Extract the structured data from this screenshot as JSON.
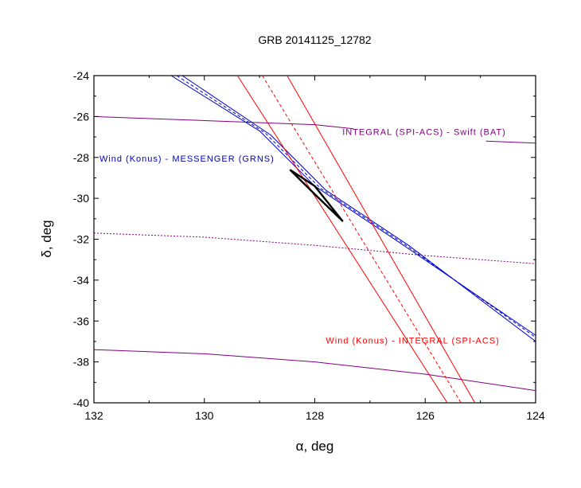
{
  "chart_data": {
    "type": "line",
    "title": "GRB 20141125_12782",
    "xlabel": "α, deg",
    "ylabel": "δ, deg",
    "xlim": [
      132,
      124
    ],
    "ylim": [
      -40,
      -24
    ],
    "x_ticks": [
      132,
      130,
      128,
      126,
      124
    ],
    "y_ticks": [
      -24,
      -26,
      -28,
      -30,
      -32,
      -34,
      -36,
      -38,
      -40
    ],
    "x_tick_labels": [
      "132",
      "130",
      "128",
      "126",
      "124"
    ],
    "y_tick_labels": [
      "-24",
      "-26",
      "-28",
      "-30",
      "-32",
      "-34",
      "-36",
      "-38",
      "-40"
    ],
    "grid": false,
    "colors": {
      "purple": "#800080",
      "blue": "#0000cc",
      "red": "#ff0000",
      "black": "#000000"
    },
    "annotations": [
      {
        "text": "INTEGRAL (SPI-ACS) - Swift (BAT)",
        "x": 127.5,
        "y": -26.9,
        "color": "#800080"
      },
      {
        "text": "Wind (Konus) - MESSENGER (GRNS)",
        "x": 131.9,
        "y": -28.2,
        "color": "#0000cc"
      },
      {
        "text": "Wind (Konus) - INTEGRAL (SPI-ACS)",
        "x": 127.8,
        "y": -37.1,
        "color": "#ff0000"
      }
    ],
    "series": [
      {
        "group": "integral-swift",
        "style": "solid",
        "color": "#800080",
        "points": [
          [
            132,
            -26.0
          ],
          [
            130,
            -26.2
          ],
          [
            128,
            -26.4
          ],
          [
            127.3,
            -26.6
          ]
        ]
      },
      {
        "group": "integral-swift",
        "style": "solid",
        "color": "#800080",
        "points": [
          [
            124.9,
            -27.2
          ],
          [
            124,
            -27.3
          ]
        ]
      },
      {
        "group": "integral-swift",
        "style": "dotted",
        "color": "#800080",
        "points": [
          [
            132,
            -31.7
          ],
          [
            130,
            -31.9
          ],
          [
            128,
            -32.3
          ],
          [
            126,
            -32.8
          ],
          [
            124,
            -33.2
          ]
        ]
      },
      {
        "group": "integral-swift",
        "style": "solid",
        "color": "#800080",
        "points": [
          [
            132,
            -37.4
          ],
          [
            130,
            -37.6
          ],
          [
            128,
            -38.0
          ],
          [
            126,
            -38.6
          ],
          [
            124,
            -39.4
          ]
        ]
      },
      {
        "group": "konus-messenger",
        "style": "solid",
        "color": "#0000cc",
        "points": [
          [
            130.6,
            -24.0
          ],
          [
            129.0,
            -26.7
          ],
          [
            128.0,
            -29.4
          ],
          [
            126.5,
            -32.1
          ],
          [
            124.0,
            -36.7
          ]
        ]
      },
      {
        "group": "konus-messenger",
        "style": "dashed",
        "color": "#0000cc",
        "points": [
          [
            130.5,
            -24.0
          ],
          [
            128.9,
            -26.8
          ],
          [
            127.9,
            -29.5
          ],
          [
            126.4,
            -32.2
          ],
          [
            124.0,
            -36.8
          ]
        ]
      },
      {
        "group": "konus-messenger",
        "style": "solid",
        "color": "#0000cc",
        "points": [
          [
            130.4,
            -24.0
          ],
          [
            128.8,
            -26.9
          ],
          [
            127.8,
            -29.6
          ],
          [
            126.3,
            -32.3
          ],
          [
            124.0,
            -37.0
          ]
        ]
      },
      {
        "group": "konus-integral",
        "style": "solid",
        "color": "#ff0000",
        "points": [
          [
            129.4,
            -24.0
          ],
          [
            125.6,
            -40.0
          ]
        ]
      },
      {
        "group": "konus-integral",
        "style": "dashed",
        "color": "#ff0000",
        "points": [
          [
            128.95,
            -24.0
          ],
          [
            125.35,
            -40.0
          ]
        ]
      },
      {
        "group": "konus-integral",
        "style": "solid",
        "color": "#ff0000",
        "points": [
          [
            128.5,
            -24.0
          ],
          [
            125.1,
            -40.0
          ]
        ]
      },
      {
        "group": "localization",
        "style": "solid-thick",
        "color": "#000000",
        "points": [
          [
            128.45,
            -28.6
          ],
          [
            128.0,
            -29.4
          ],
          [
            127.5,
            -31.1
          ],
          [
            128.0,
            -29.8
          ],
          [
            128.45,
            -28.6
          ]
        ]
      }
    ]
  }
}
